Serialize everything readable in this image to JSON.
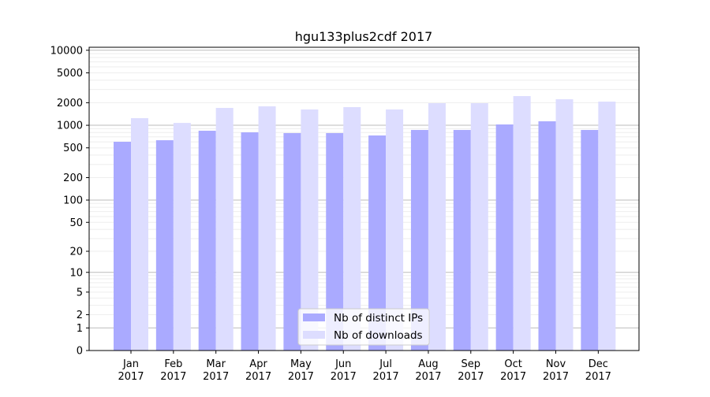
{
  "chart_data": {
    "type": "bar",
    "title": "hgu133plus2cdf 2017",
    "xlabel": "",
    "ylabel": "",
    "yscale": "symlog",
    "ylim": [
      0,
      10000
    ],
    "yticks": [
      0,
      1,
      2,
      5,
      10,
      20,
      50,
      100,
      200,
      500,
      1000,
      2000,
      5000,
      10000
    ],
    "grid": true,
    "legend_position": "bottom-center",
    "categories": [
      "Jan\n2017",
      "Feb\n2017",
      "Mar\n2017",
      "Apr\n2017",
      "May\n2017",
      "Jun\n2017",
      "Jul\n2017",
      "Aug\n2017",
      "Sep\n2017",
      "Oct\n2017",
      "Nov\n2017",
      "Dec\n2017"
    ],
    "series": [
      {
        "name": "Nb of distinct IPs",
        "color": "#aaaaff",
        "values": [
          603,
          632,
          846,
          806,
          787,
          787,
          732,
          867,
          867,
          1026,
          1131,
          867
        ]
      },
      {
        "name": "Nb of downloads",
        "color": "#ddddff",
        "values": [
          1245,
          1075,
          1705,
          1790,
          1625,
          1747,
          1625,
          1972,
          1972,
          2450,
          2225,
          2069
        ]
      }
    ]
  }
}
